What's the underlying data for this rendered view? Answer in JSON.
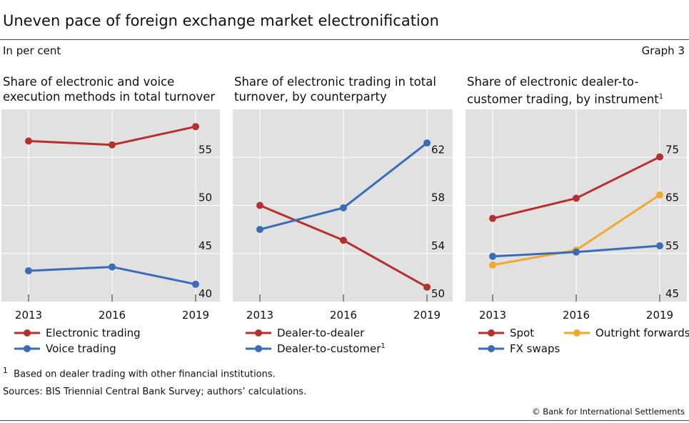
{
  "title": "Uneven pace of foreign exchange market electronification",
  "unit": "In per cent",
  "graph_label": "Graph 3",
  "footnote": "Based on dealer trading with other financial institutions.",
  "footnote_mark": "1",
  "sources": "Sources: BIS Triennial Central Bank Survey; authors’ calculations.",
  "copyright": "© Bank for International Settlements",
  "colors": {
    "red": "#b5312f",
    "blue": "#3a6db5",
    "orange": "#f0a92c",
    "plot_bg": "#e1e1e1"
  },
  "chart_data": [
    {
      "type": "line",
      "title_lines": [
        "Share of electronic and voice",
        "execution methods in total turnover"
      ],
      "title_sup": "",
      "categories": [
        "2013",
        "2016",
        "2019"
      ],
      "yticks": [
        40,
        45,
        50,
        55
      ],
      "ylim": [
        40,
        60
      ],
      "y_axis": "right",
      "grid": true,
      "series": [
        {
          "name": "Electronic trading",
          "color": "#b5312f",
          "values": [
            56.7,
            56.3,
            58.2
          ]
        },
        {
          "name": "Voice trading",
          "color": "#3a6db5",
          "values": [
            43.2,
            43.6,
            41.8
          ]
        }
      ]
    },
    {
      "type": "line",
      "title_lines": [
        "Share of electronic trading in total",
        "turnover, by counterparty"
      ],
      "title_sup": "",
      "categories": [
        "2013",
        "2016",
        "2019"
      ],
      "yticks": [
        50,
        54,
        58,
        62
      ],
      "ylim": [
        50,
        66
      ],
      "y_axis": "right",
      "grid": true,
      "series": [
        {
          "name": "Dealer-to-dealer",
          "color": "#b5312f",
          "values": [
            58.0,
            55.1,
            51.2
          ]
        },
        {
          "name": "Dealer-to-customer",
          "sup": "1",
          "color": "#3a6db5",
          "values": [
            56.0,
            57.8,
            63.2
          ]
        }
      ]
    },
    {
      "type": "line",
      "title_lines": [
        "Share of electronic dealer-to-",
        "customer trading, by instrument"
      ],
      "title_sup": "1",
      "categories": [
        "2013",
        "2016",
        "2019"
      ],
      "yticks": [
        45,
        55,
        65,
        75
      ],
      "ylim": [
        45,
        85
      ],
      "y_axis": "right",
      "grid": true,
      "series": [
        {
          "name": "Spot",
          "color": "#b5312f",
          "values": [
            62.3,
            66.5,
            75.1
          ]
        },
        {
          "name": "Outright forwards",
          "color": "#f0a92c",
          "values": [
            52.6,
            55.7,
            67.2
          ]
        },
        {
          "name": "FX swaps",
          "color": "#3a6db5",
          "values": [
            54.4,
            55.3,
            56.6
          ]
        }
      ]
    }
  ]
}
